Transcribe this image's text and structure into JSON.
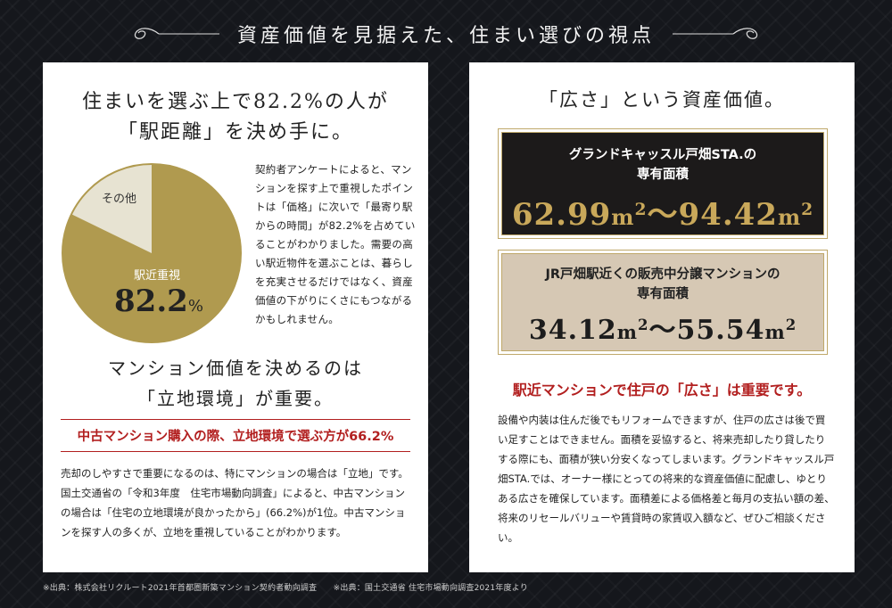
{
  "header": {
    "title": "資産価値を見据えた、住まい選びの視点"
  },
  "left": {
    "heading1_line1": "住まいを選ぶ上で82.2%の人が",
    "heading1_line2": "「駅距離」を決め手に。",
    "pie": {
      "other_label": "その他",
      "main_label": "駅近重視",
      "main_value": "82.2",
      "main_unit": "%",
      "main_fraction": 0.822,
      "colors": {
        "main": "#b09a4f",
        "other": "#e7e3d2"
      }
    },
    "survey_text": "契約者アンケートによると、マンションを探す上で重視したポイントは「価格」に次いで「最寄り駅からの時間」が82.2%を占めていることがわかりました。需要の高い駅近物件を選ぶことは、暮らしを充実させるだけではなく、資産価値の下がりにくさにもつながるかもしれません。",
    "heading2_line1": "マンション価値を決めるのは",
    "heading2_line2": "「立地環境」が重要。",
    "red_heading": "中古マンション購入の際、立地環境で選ぶ方が66.2%",
    "body": "売却のしやすさで重要になるのは、特にマンションの場合は「立地」です。国土交通省の「令和3年度　住宅市場動向調査」によると、中古マンションの場合は「住宅の立地環境が良かったから」(66.2%)が1位。中古マンションを探す人の多くが、立地を重視していることがわかります。"
  },
  "right": {
    "heading": "「広さ」という資産価値。",
    "box1": {
      "caption_line1": "グランドキャッスル戸畑STA.の",
      "caption_line2": "専有面積",
      "from": "62.99",
      "to": "94.42",
      "unit": "m",
      "sup": "2",
      "sep": "〜"
    },
    "box2": {
      "caption_line1": "JR戸畑駅近くの販売中分譲マンションの",
      "caption_line2": "専有面積",
      "from": "34.12",
      "to": "55.54",
      "unit": "m",
      "sup": "2",
      "sep": "〜"
    },
    "red_heading": "駅近マンションで住戸の「広さ」は重要です。",
    "body": "設備や内装は住んだ後でもリフォームできますが、住戸の広さは後で買い足すことはできません。面積を妥協すると、将来売却したり貸したりする際にも、面積が狭い分安くなってしまいます。グランドキャッスル戸畑STA.では、オーナー様にとっての将来的な資産価値に配慮し、ゆとりある広さを確保しています。面積差による価格差と毎月の支払い額の差、将来のリセールバリューや賃貸時の家賃収入額など、ぜひご相談ください。"
  },
  "footer": {
    "source": "※出典：株式会社リクルート2021年首都圏新築マンション契約者動向調査　　※出典：国土交通省 住宅市場動向調査2021年度より"
  }
}
